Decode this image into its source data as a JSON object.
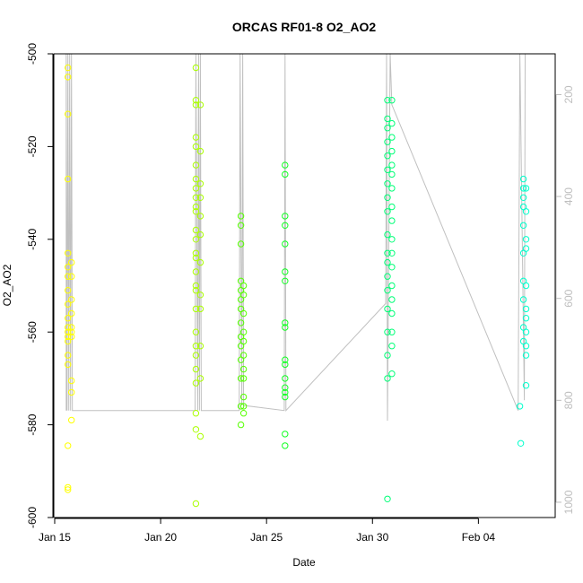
{
  "chart_data": {
    "type": "scatter",
    "title": "ORCAS RF01-8 O2_AO2",
    "xlabel": "Date",
    "ylabel": "O2_AO2",
    "x_ticks": [
      {
        "value": "2016-01-15",
        "label": "Jan 15"
      },
      {
        "value": "2016-01-20",
        "label": "Jan 20"
      },
      {
        "value": "2016-01-25",
        "label": "Jan 25"
      },
      {
        "value": "2016-01-30",
        "label": "Jan 30"
      },
      {
        "value": "2016-02-04",
        "label": "Feb 04"
      }
    ],
    "xlim": [
      "2016-01-14 23:00",
      "2016-02-07 15:00"
    ],
    "ylim": [
      -600,
      -500
    ],
    "y_ticks": [
      -600,
      -580,
      -560,
      -540,
      -520,
      -500
    ],
    "y2_ticks": [
      200,
      400,
      600,
      800,
      1000
    ],
    "y2lim": [
      1030,
      120
    ],
    "y2_color": "#bebebe",
    "line_color": "#c0c0c0",
    "grid": false,
    "legend": "none",
    "marker": "open-circle",
    "series": [
      {
        "color": "#ffff00",
        "points": [
          [
            "2016-01-15 15:00",
            -503
          ],
          [
            "2016-01-15 15:00",
            -505
          ],
          [
            "2016-01-15 15:00",
            -513
          ],
          [
            "2016-01-15 15:00",
            -527
          ],
          [
            "2016-01-15 15:00",
            -543
          ],
          [
            "2016-01-15 15:00",
            -546
          ],
          [
            "2016-01-15 15:00",
            -548
          ],
          [
            "2016-01-15 15:00",
            -551
          ],
          [
            "2016-01-15 15:00",
            -554
          ],
          [
            "2016-01-15 15:00",
            -557
          ],
          [
            "2016-01-15 15:00",
            -559
          ],
          [
            "2016-01-15 15:00",
            -560
          ],
          [
            "2016-01-15 15:00",
            -561
          ],
          [
            "2016-01-15 15:00",
            -562
          ],
          [
            "2016-01-15 15:00",
            -565
          ],
          [
            "2016-01-15 15:00",
            -567
          ],
          [
            "2016-01-15 15:00",
            -584.5
          ],
          [
            "2016-01-15 15:00",
            -593.5
          ],
          [
            "2016-01-15 15:00",
            -594
          ],
          [
            "2016-01-15 19:00",
            -545
          ],
          [
            "2016-01-15 19:00",
            -548
          ],
          [
            "2016-01-15 19:00",
            -553
          ],
          [
            "2016-01-15 19:00",
            -556
          ],
          [
            "2016-01-15 19:00",
            -559
          ],
          [
            "2016-01-15 19:00",
            -560
          ],
          [
            "2016-01-15 19:00",
            -561
          ],
          [
            "2016-01-15 19:00",
            -570.5
          ],
          [
            "2016-01-15 19:00",
            -573
          ],
          [
            "2016-01-15 19:00",
            -579
          ]
        ]
      },
      {
        "color": "#aaff00",
        "points": [
          [
            "2016-01-21 16:00",
            -503
          ],
          [
            "2016-01-21 16:00",
            -510
          ],
          [
            "2016-01-21 16:00",
            -511
          ],
          [
            "2016-01-21 16:00",
            -518
          ],
          [
            "2016-01-21 16:00",
            -520
          ],
          [
            "2016-01-21 16:00",
            -524
          ],
          [
            "2016-01-21 16:00",
            -527
          ],
          [
            "2016-01-21 16:00",
            -529
          ],
          [
            "2016-01-21 16:00",
            -531
          ],
          [
            "2016-01-21 16:00",
            -533
          ],
          [
            "2016-01-21 16:00",
            -534
          ],
          [
            "2016-01-21 16:00",
            -538
          ],
          [
            "2016-01-21 16:00",
            -540
          ],
          [
            "2016-01-21 16:00",
            -543
          ],
          [
            "2016-01-21 16:00",
            -544
          ],
          [
            "2016-01-21 16:00",
            -547
          ],
          [
            "2016-01-21 16:00",
            -550
          ],
          [
            "2016-01-21 16:00",
            -551
          ],
          [
            "2016-01-21 16:00",
            -555
          ],
          [
            "2016-01-21 16:00",
            -560
          ],
          [
            "2016-01-21 16:00",
            -563
          ],
          [
            "2016-01-21 16:00",
            -565
          ],
          [
            "2016-01-21 16:00",
            -568
          ],
          [
            "2016-01-21 16:00",
            -571
          ],
          [
            "2016-01-21 16:00",
            -577.5
          ],
          [
            "2016-01-21 16:00",
            -581
          ],
          [
            "2016-01-21 16:00",
            -597
          ],
          [
            "2016-01-21 21:00",
            -511
          ],
          [
            "2016-01-21 21:00",
            -521
          ],
          [
            "2016-01-21 21:00",
            -528
          ],
          [
            "2016-01-21 21:00",
            -531
          ],
          [
            "2016-01-21 21:00",
            -535
          ],
          [
            "2016-01-21 21:00",
            -539
          ],
          [
            "2016-01-21 21:00",
            -545
          ],
          [
            "2016-01-21 21:00",
            -552
          ],
          [
            "2016-01-21 21:00",
            -555
          ],
          [
            "2016-01-21 21:00",
            -563
          ],
          [
            "2016-01-21 21:00",
            -570
          ],
          [
            "2016-01-21 21:00",
            -582.5
          ]
        ]
      },
      {
        "color": "#55ff00",
        "points": [
          [
            "2016-01-23 19:00",
            -535
          ],
          [
            "2016-01-23 19:00",
            -537
          ],
          [
            "2016-01-23 19:00",
            -541
          ],
          [
            "2016-01-23 19:00",
            -549
          ],
          [
            "2016-01-23 19:00",
            -551
          ],
          [
            "2016-01-23 19:00",
            -553
          ],
          [
            "2016-01-23 19:00",
            -555
          ],
          [
            "2016-01-23 19:00",
            -558
          ],
          [
            "2016-01-23 19:00",
            -561
          ],
          [
            "2016-01-23 19:00",
            -563
          ],
          [
            "2016-01-23 19:00",
            -566
          ],
          [
            "2016-01-23 19:00",
            -570
          ],
          [
            "2016-01-23 19:00",
            -576
          ],
          [
            "2016-01-23 19:00",
            -580
          ],
          [
            "2016-01-23 22:00",
            -550
          ],
          [
            "2016-01-23 22:00",
            -552
          ],
          [
            "2016-01-23 22:00",
            -556
          ],
          [
            "2016-01-23 22:00",
            -560
          ],
          [
            "2016-01-23 22:00",
            -562
          ],
          [
            "2016-01-23 22:00",
            -565
          ],
          [
            "2016-01-23 22:00",
            -568
          ],
          [
            "2016-01-23 22:00",
            -570
          ],
          [
            "2016-01-23 22:00",
            -574
          ],
          [
            "2016-01-23 22:00",
            -576
          ],
          [
            "2016-01-23 22:00",
            -577.5
          ]
        ]
      },
      {
        "color": "#11ff22",
        "points": [
          [
            "2016-01-25 21:00",
            -524
          ],
          [
            "2016-01-25 21:00",
            -526
          ],
          [
            "2016-01-25 21:00",
            -535
          ],
          [
            "2016-01-25 21:00",
            -537
          ],
          [
            "2016-01-25 21:00",
            -541
          ],
          [
            "2016-01-25 21:00",
            -547
          ],
          [
            "2016-01-25 21:00",
            -549
          ],
          [
            "2016-01-25 21:00",
            -558
          ],
          [
            "2016-01-25 21:00",
            -559
          ],
          [
            "2016-01-25 21:00",
            -566
          ],
          [
            "2016-01-25 21:00",
            -567
          ],
          [
            "2016-01-25 21:00",
            -570
          ],
          [
            "2016-01-25 21:00",
            -572
          ],
          [
            "2016-01-25 21:00",
            -573
          ],
          [
            "2016-01-25 21:00",
            -574
          ],
          [
            "2016-01-25 21:00",
            -582
          ],
          [
            "2016-01-25 21:00",
            -584.5
          ]
        ]
      },
      {
        "color": "#00ff77",
        "points": [
          [
            "2016-01-30 17:00",
            -510
          ],
          [
            "2016-01-30 17:00",
            -514
          ],
          [
            "2016-01-30 17:00",
            -516
          ],
          [
            "2016-01-30 17:00",
            -519
          ],
          [
            "2016-01-30 17:00",
            -522
          ],
          [
            "2016-01-30 17:00",
            -525
          ],
          [
            "2016-01-30 17:00",
            -528
          ],
          [
            "2016-01-30 17:00",
            -531
          ],
          [
            "2016-01-30 17:00",
            -534
          ],
          [
            "2016-01-30 17:00",
            -539
          ],
          [
            "2016-01-30 17:00",
            -543
          ],
          [
            "2016-01-30 17:00",
            -545
          ],
          [
            "2016-01-30 17:00",
            -548
          ],
          [
            "2016-01-30 17:00",
            -551
          ],
          [
            "2016-01-30 17:00",
            -555
          ],
          [
            "2016-01-30 17:00",
            -560
          ],
          [
            "2016-01-30 17:00",
            -565
          ],
          [
            "2016-01-30 17:00",
            -570
          ],
          [
            "2016-01-30 17:00",
            -596
          ],
          [
            "2016-01-30 22:00",
            -510
          ],
          [
            "2016-01-30 22:00",
            -515
          ],
          [
            "2016-01-30 22:00",
            -518
          ],
          [
            "2016-01-30 22:00",
            -521
          ],
          [
            "2016-01-30 22:00",
            -524
          ],
          [
            "2016-01-30 22:00",
            -526
          ],
          [
            "2016-01-30 22:00",
            -529
          ],
          [
            "2016-01-30 22:00",
            -533
          ],
          [
            "2016-01-30 22:00",
            -536
          ],
          [
            "2016-01-30 22:00",
            -540
          ],
          [
            "2016-01-30 22:00",
            -543
          ],
          [
            "2016-01-30 22:00",
            -546
          ],
          [
            "2016-01-30 22:00",
            -550
          ],
          [
            "2016-01-30 22:00",
            -553
          ],
          [
            "2016-01-30 22:00",
            -556
          ],
          [
            "2016-01-30 22:00",
            -560
          ],
          [
            "2016-01-30 22:00",
            -563
          ],
          [
            "2016-01-30 22:00",
            -569
          ]
        ]
      },
      {
        "color": "#00ffcc",
        "points": [
          [
            "2016-02-05 23:00",
            -576
          ],
          [
            "2016-02-06 00:00",
            -584
          ],
          [
            "2016-02-06 03:00",
            -527
          ],
          [
            "2016-02-06 03:00",
            -529
          ],
          [
            "2016-02-06 03:00",
            -531
          ],
          [
            "2016-02-06 03:00",
            -533
          ],
          [
            "2016-02-06 03:00",
            -537
          ],
          [
            "2016-02-06 03:00",
            -543
          ],
          [
            "2016-02-06 03:00",
            -549
          ],
          [
            "2016-02-06 03:00",
            -553
          ],
          [
            "2016-02-06 03:00",
            -559
          ],
          [
            "2016-02-06 03:00",
            -562
          ],
          [
            "2016-02-06 06:00",
            -529
          ],
          [
            "2016-02-06 06:00",
            -534
          ],
          [
            "2016-02-06 06:00",
            -540
          ],
          [
            "2016-02-06 06:00",
            -542
          ],
          [
            "2016-02-06 06:00",
            -550
          ],
          [
            "2016-02-06 06:00",
            -555
          ],
          [
            "2016-02-06 06:00",
            -557
          ],
          [
            "2016-02-06 06:00",
            -560
          ],
          [
            "2016-02-06 06:00",
            -563
          ],
          [
            "2016-02-06 06:00",
            -565
          ],
          [
            "2016-02-06 06:00",
            -571.5
          ]
        ]
      }
    ]
  }
}
